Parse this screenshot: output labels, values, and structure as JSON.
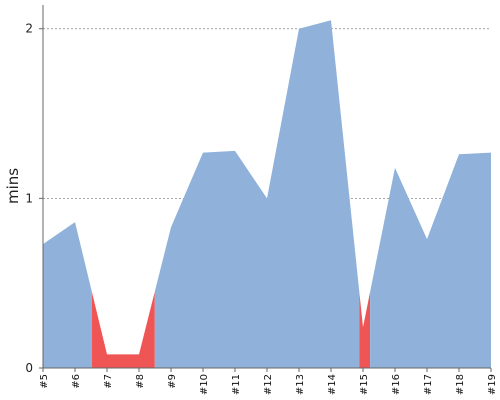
{
  "chart_data": {
    "type": "area",
    "title": "",
    "xlabel": "",
    "ylabel": "mins",
    "x": [
      "#5",
      "#6",
      "#7",
      "#8",
      "#9",
      "#10",
      "#11",
      "#12",
      "#13",
      "#14",
      "#15",
      "#16",
      "#17",
      "#18",
      "#19"
    ],
    "values": [
      0.73,
      0.86,
      0.08,
      0.08,
      0.83,
      1.27,
      1.28,
      1.0,
      2.0,
      2.05,
      0.24,
      1.18,
      0.76,
      1.26,
      1.27
    ],
    "highlight": {
      "threshold": 0.45,
      "color": "#f05555"
    },
    "ylim": [
      0,
      2.14
    ],
    "yticks": [
      0,
      1,
      2
    ],
    "grid": "horizontal-dashed",
    "legend": "none",
    "colors": {
      "area": "#8fb1da",
      "highlight": "#f05555",
      "grid": "#888888",
      "axis": "#666666"
    }
  }
}
